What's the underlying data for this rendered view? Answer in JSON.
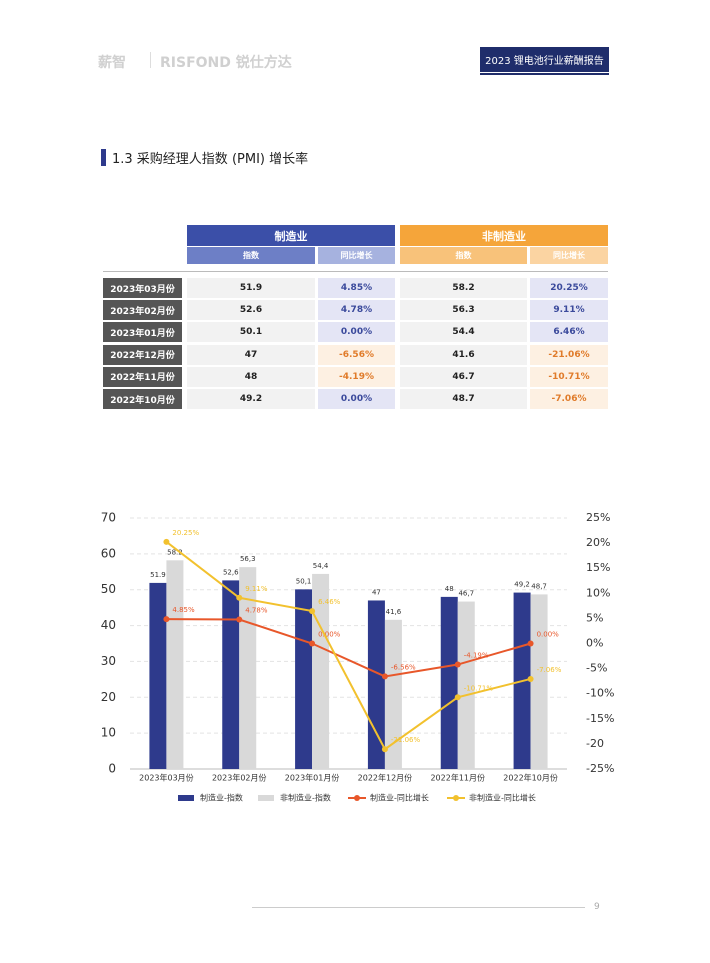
{
  "header": {
    "logo": "薪智",
    "brand": "RISFOND 锐仕方达",
    "report": "2023 锂电池行业薪酬报告"
  },
  "section_title": "1.3 采购经理人指数 (PMI) 增长率",
  "table": {
    "groups": [
      "制造业",
      "非制造业"
    ],
    "subheaders": [
      "指数",
      "同比增长",
      "指数",
      "同比增长"
    ],
    "rows": [
      [
        "2023年03月份",
        "51.9",
        "4.85%",
        "58.2",
        "20.25%"
      ],
      [
        "2023年02月份",
        "52.6",
        "4.78%",
        "56.3",
        "9.11%"
      ],
      [
        "2023年01月份",
        "50.1",
        "0.00%",
        "54.4",
        "6.46%"
      ],
      [
        "2022年12月份",
        "47",
        "-6.56%",
        "41.6",
        "-21.06%"
      ],
      [
        "2022年11月份",
        "48",
        "-4.19%",
        "46.7",
        "-10.71%"
      ],
      [
        "2022年10月份",
        "49.2",
        "0.00%",
        "48.7",
        "-7.06%"
      ]
    ]
  },
  "chart_data": {
    "type": "combo",
    "categories": [
      "2023年03月份",
      "2023年02月份",
      "2023年01月份",
      "2022年12月份",
      "2022年11月份",
      "2022年10月份"
    ],
    "series": [
      {
        "name": "制造业-指数",
        "type": "bar",
        "color": "#2e3a8c",
        "values": [
          51.9,
          52.6,
          50.1,
          47,
          48,
          49.2
        ],
        "value_labels": [
          "51.9",
          "52,6",
          "50,1",
          "47",
          "48",
          "49,2"
        ]
      },
      {
        "name": "非制造业-指数",
        "type": "bar",
        "color": "#d9d9d9",
        "values": [
          58.2,
          56.3,
          54.4,
          41.6,
          46.7,
          48.7
        ],
        "value_labels": [
          "58.2",
          "56,3",
          "54,4",
          "41,6",
          "46,7",
          "48,7"
        ]
      },
      {
        "name": "制造业-同比增长",
        "type": "line",
        "axis": "y2",
        "color": "#e8572a",
        "values": [
          4.85,
          4.78,
          0,
          -6.56,
          -4.19,
          0
        ],
        "value_labels": [
          "4.85%",
          "4.78%",
          "0.00%",
          "-6.56%",
          "-4.19%",
          "0.00%"
        ]
      },
      {
        "name": "非制造业-同比增长",
        "type": "line",
        "axis": "y2",
        "color": "#f2c12e",
        "values": [
          20.25,
          9.11,
          6.46,
          -21.06,
          -10.71,
          -7.06
        ],
        "value_labels": [
          "20.25%",
          "9.11%",
          "6.46%",
          "-21.06%",
          "-10.71%",
          "-7.06%"
        ]
      }
    ],
    "ylim": [
      0,
      70
    ],
    "yticks": [
      0,
      10,
      20,
      30,
      40,
      50,
      60,
      70
    ],
    "y2lim": [
      -25,
      25
    ],
    "y2ticks": [
      {
        "value": 25,
        "label": "25%"
      },
      {
        "value": 20,
        "label": "20%"
      },
      {
        "value": 15,
        "label": "15%"
      },
      {
        "value": 10,
        "label": "10%"
      },
      {
        "value": 5,
        "label": "5%"
      },
      {
        "value": 0,
        "label": "0%"
      },
      {
        "value": -5,
        "label": "-5%"
      },
      {
        "value": -10,
        "label": "-10%"
      },
      {
        "value": -15,
        "label": "-15%"
      },
      -20,
      {
        "value": -25,
        "label": "-25%"
      }
    ],
    "grid": true,
    "legend": "bottom"
  },
  "footer": {
    "page": "9"
  }
}
